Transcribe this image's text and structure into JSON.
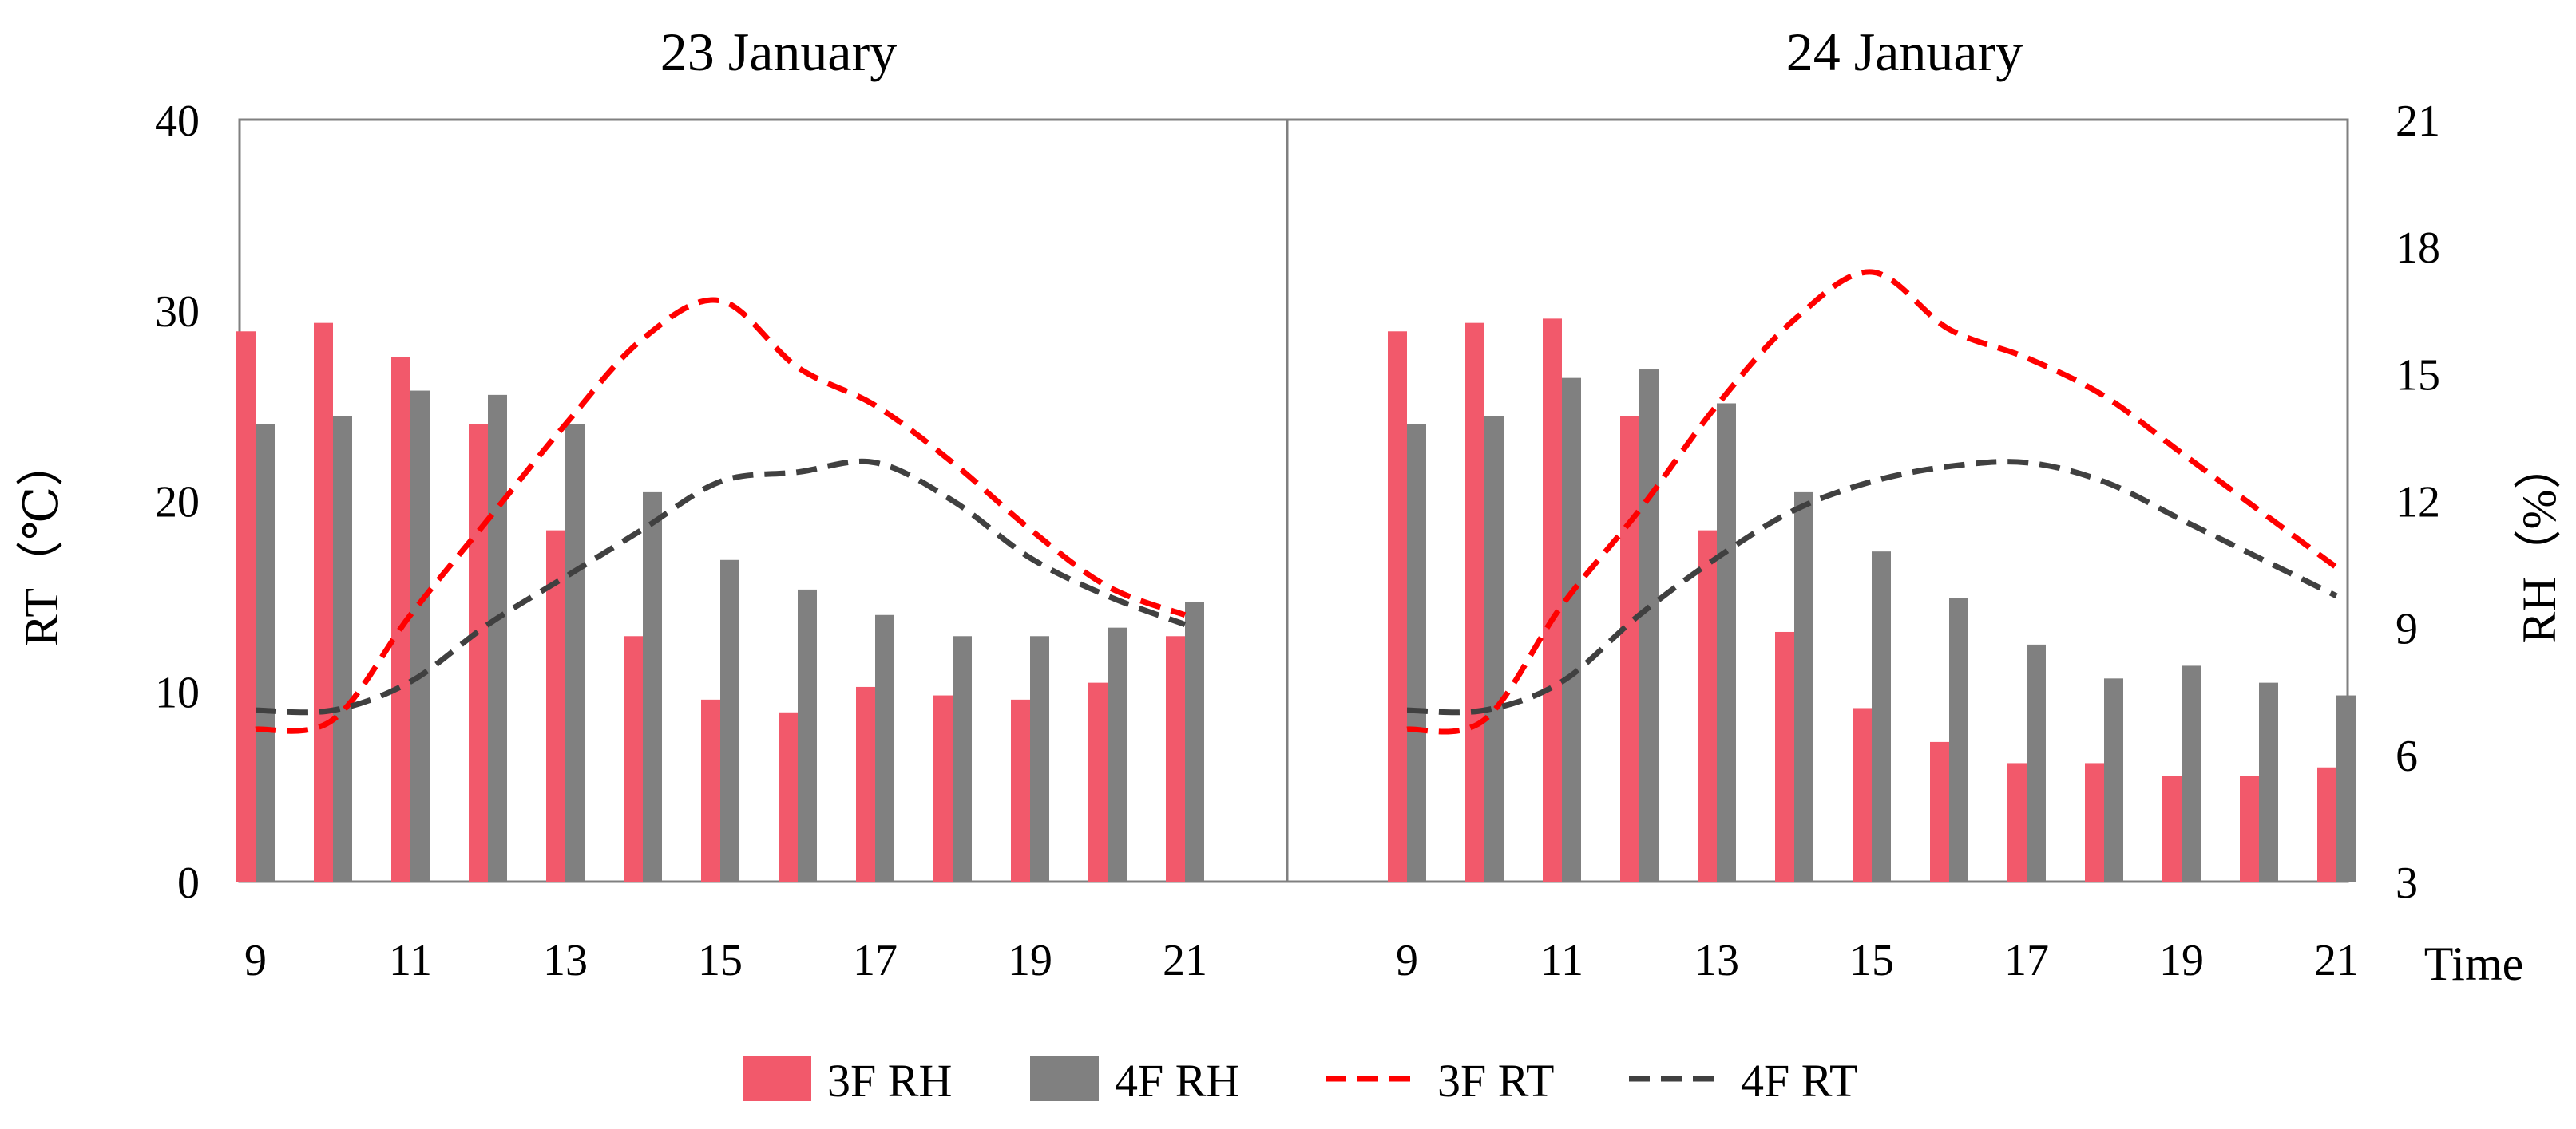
{
  "chart_data": {
    "type": "bar",
    "panels": [
      {
        "title": "23 January",
        "x": [
          9,
          10,
          11,
          12,
          13,
          14,
          15,
          16,
          17,
          18,
          19,
          20,
          21
        ],
        "series": [
          {
            "name": "3F RH",
            "kind": "bar",
            "axis": "right",
            "color": "#f2596b",
            "values": [
              16.0,
              16.2,
              15.4,
              13.8,
              11.3,
              8.8,
              7.3,
              7.0,
              7.6,
              7.4,
              7.3,
              7.7,
              8.8
            ]
          },
          {
            "name": "4F RH",
            "kind": "bar",
            "axis": "right",
            "color": "#808080",
            "values": [
              13.8,
              14.0,
              14.6,
              14.5,
              13.8,
              12.2,
              10.6,
              9.9,
              9.3,
              8.8,
              8.8,
              9.0,
              9.6
            ]
          },
          {
            "name": "3F RT",
            "kind": "line",
            "axis": "left",
            "color": "#ff0000",
            "values": [
              8.0,
              8.5,
              14.0,
              19.0,
              24.0,
              28.5,
              30.5,
              27.0,
              25.0,
              22.0,
              18.5,
              15.5,
              14.0
            ]
          },
          {
            "name": "4F RT",
            "kind": "line",
            "axis": "left",
            "color": "#404040",
            "values": [
              9.0,
              9.0,
              10.5,
              13.5,
              16.0,
              18.5,
              21.0,
              21.5,
              22.0,
              20.0,
              17.0,
              15.0,
              13.5
            ]
          }
        ]
      },
      {
        "title": "24 January",
        "x": [
          9,
          10,
          11,
          12,
          13,
          14,
          15,
          16,
          17,
          18,
          19,
          20,
          21
        ],
        "series": [
          {
            "name": "3F RH",
            "kind": "bar",
            "axis": "right",
            "color": "#f2596b",
            "values": [
              16.0,
              16.2,
              16.3,
              14.0,
              11.3,
              8.9,
              7.1,
              6.3,
              5.8,
              5.8,
              5.5,
              5.5,
              5.7
            ]
          },
          {
            "name": "4F RH",
            "kind": "bar",
            "axis": "right",
            "color": "#808080",
            "values": [
              13.8,
              14.0,
              14.9,
              15.1,
              14.3,
              12.2,
              10.8,
              9.7,
              8.6,
              7.8,
              8.1,
              7.7,
              7.4
            ]
          },
          {
            "name": "3F RT",
            "kind": "line",
            "axis": "left",
            "color": "#ff0000",
            "values": [
              8.0,
              8.5,
              14.5,
              19.5,
              25.0,
              29.5,
              32.0,
              29.0,
              27.5,
              25.5,
              22.5,
              19.5,
              16.5
            ]
          },
          {
            "name": "4F RT",
            "kind": "line",
            "axis": "left",
            "color": "#404040",
            "values": [
              9.0,
              9.0,
              10.5,
              14.0,
              17.0,
              19.5,
              21.0,
              21.8,
              22.0,
              21.0,
              19.0,
              17.0,
              15.0
            ]
          }
        ]
      }
    ],
    "x_tick_labels": [
      "9",
      "11",
      "13",
      "15",
      "17",
      "19",
      "21"
    ],
    "y_left": {
      "label": "RT（℃）",
      "range": [
        0,
        40
      ],
      "ticks": [
        0,
        10,
        20,
        30,
        40
      ]
    },
    "y_right": {
      "label": "RH（%）",
      "range": [
        3,
        21
      ],
      "ticks": [
        3,
        6,
        9,
        12,
        15,
        18,
        21
      ]
    },
    "xlabel": "Time",
    "legend": {
      "position": "bottom",
      "entries": [
        {
          "name": "3F RH",
          "kind": "bar",
          "color": "#f2596b"
        },
        {
          "name": "4F RH",
          "kind": "bar",
          "color": "#808080"
        },
        {
          "name": "3F RT",
          "kind": "dashed-line",
          "color": "#ff0000"
        },
        {
          "name": "4F RT",
          "kind": "dashed-line",
          "color": "#404040"
        }
      ]
    }
  }
}
